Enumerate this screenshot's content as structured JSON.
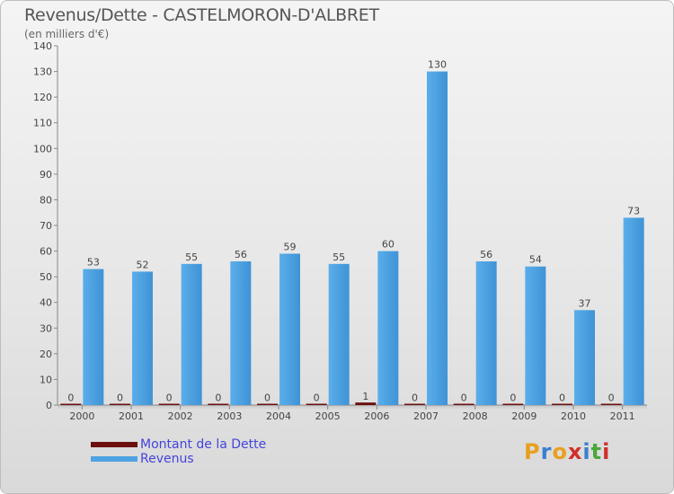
{
  "chart_data": {
    "type": "bar",
    "title": "Revenus/Dette - CASTELMORON-D'ALBRET",
    "subtitle": "(en milliers d'€)",
    "categories": [
      "2000",
      "2001",
      "2002",
      "2003",
      "2004",
      "2005",
      "2006",
      "2007",
      "2008",
      "2009",
      "2010",
      "2011"
    ],
    "series": [
      {
        "name": "Montant de la Dette",
        "color": "#6b0f0f",
        "values": [
          0,
          0,
          0,
          0,
          0,
          0,
          1,
          0,
          0,
          0,
          0,
          0
        ]
      },
      {
        "name": "Revenus",
        "color": "#4ea3e3",
        "values": [
          53,
          52,
          55,
          56,
          59,
          55,
          60,
          130,
          56,
          54,
          37,
          73
        ]
      }
    ],
    "ylim": [
      0,
      140
    ],
    "ytick_step": 10,
    "yticks": [
      "0",
      "10",
      "20",
      "30",
      "40",
      "50",
      "60",
      "70",
      "80",
      "90",
      "100",
      "110",
      "120",
      "130",
      "140"
    ],
    "grid": false,
    "legend_position": "bottom-left"
  },
  "logo_text": "Proxiti"
}
